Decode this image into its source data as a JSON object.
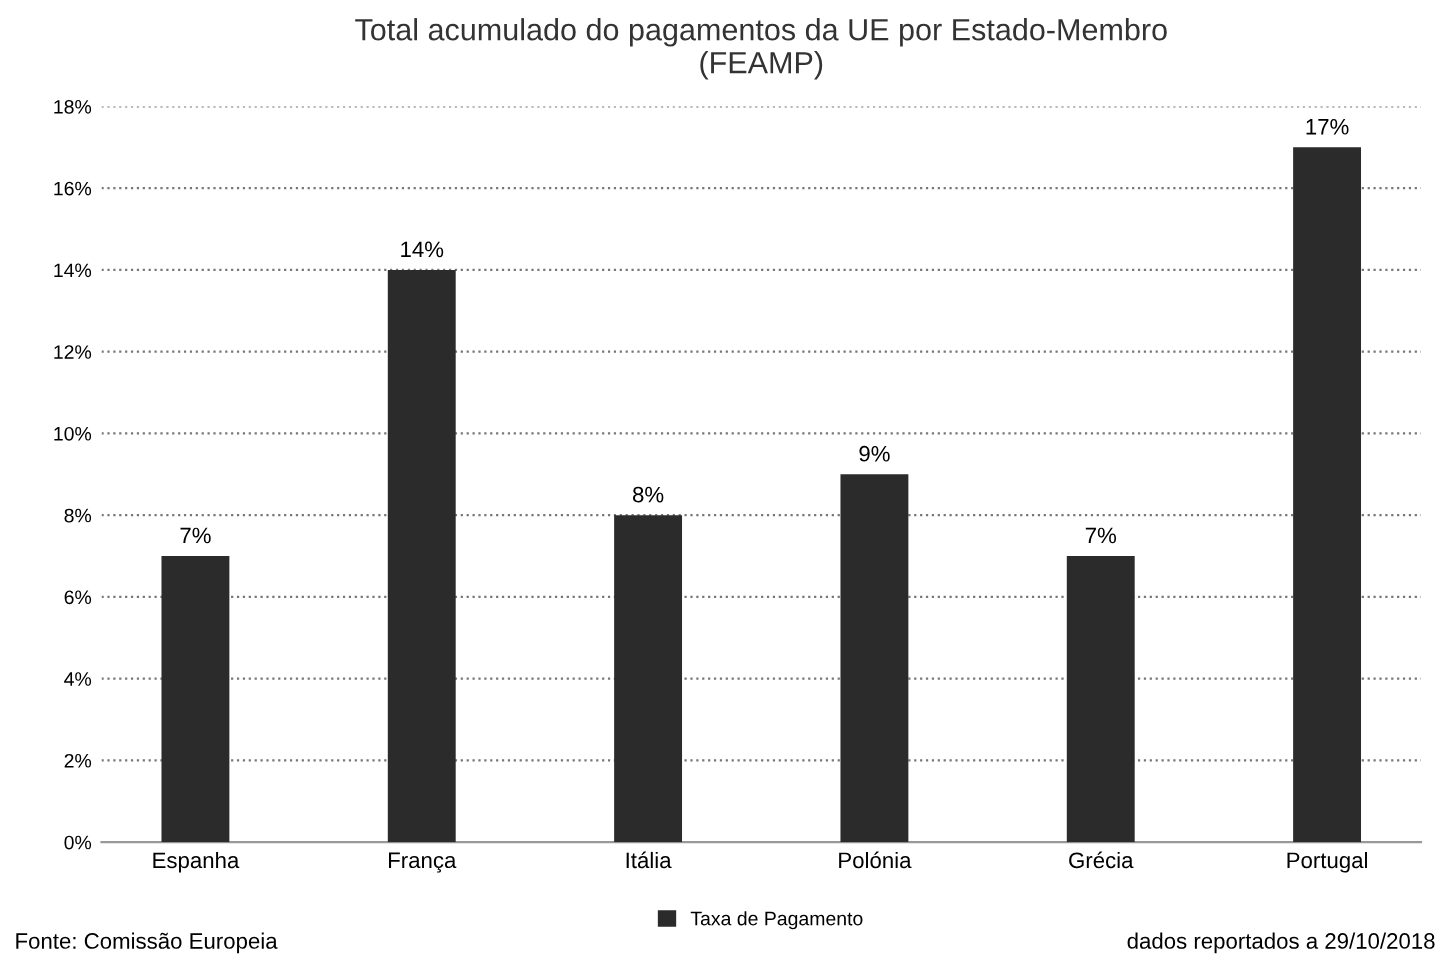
{
  "chart_data": {
    "type": "bar",
    "title": "Total acumulado do pagamentos da UE por Estado-Membro\n(FEAMP)",
    "categories": [
      "Espanha",
      "França",
      "Itália",
      "Polónia",
      "Grécia",
      "Portugal"
    ],
    "series": [
      {
        "name": "Taxa de Pagamento",
        "color": "#2b2b2b",
        "values": [
          7,
          14,
          8,
          9,
          7,
          17
        ],
        "value_labels": [
          "7%",
          "14%",
          "8%",
          "9%",
          "7%",
          "17%"
        ]
      }
    ],
    "ylim": [
      0,
      18
    ],
    "yticks": [
      {
        "value": 0,
        "label": "0%"
      },
      {
        "value": 2,
        "label": "2%"
      },
      {
        "value": 4,
        "label": "4%"
      },
      {
        "value": 6,
        "label": "6%"
      },
      {
        "value": 8,
        "label": "8%"
      },
      {
        "value": 10,
        "label": "10%"
      },
      {
        "value": 12,
        "label": "12%"
      },
      {
        "value": 14,
        "label": "14%"
      },
      {
        "value": 16,
        "label": "16%"
      },
      {
        "value": 18,
        "label": "18%"
      }
    ],
    "grid": "y",
    "legend": "bottom",
    "annotations": [
      "Fonte: Comissão Europeia",
      "dados reportados a 29/10/2018"
    ]
  }
}
